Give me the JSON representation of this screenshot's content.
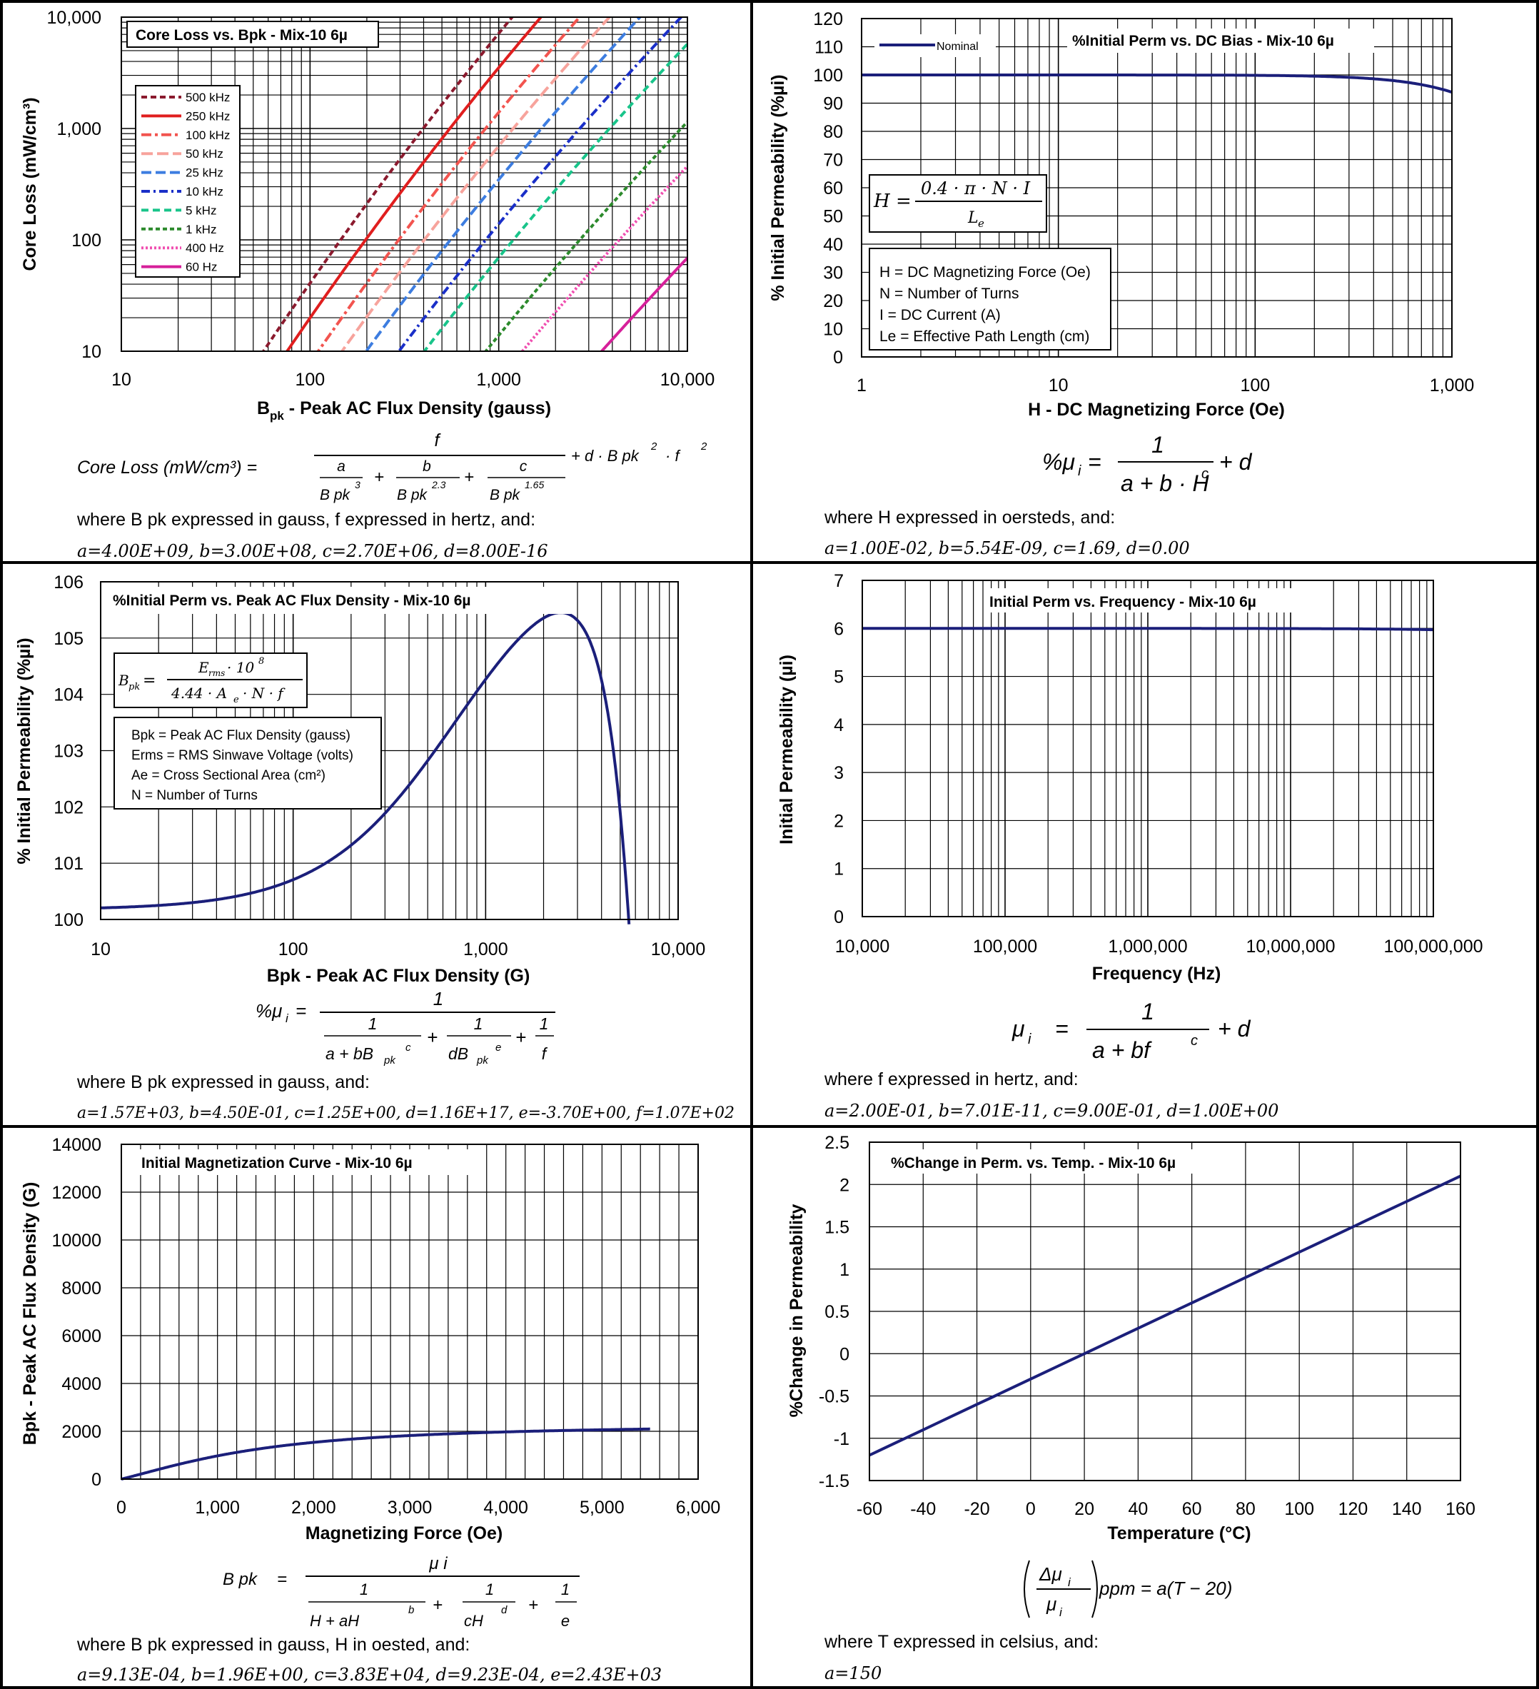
{
  "chart_data": [
    {
      "id": "core_loss",
      "type": "line",
      "title": "Core Loss vs. Bpk - Mix-10  6µ",
      "xlabel_main": "B",
      "xlabel_sub": "pk",
      "xlabel_rest": " - Peak AC Flux Density (gauss)",
      "ylabel": "Core Loss (mW/cm³)",
      "x_scale": "log",
      "y_scale": "log",
      "xlim": [
        10,
        10000
      ],
      "ylim": [
        10,
        10000
      ],
      "x_ticks": [
        "10",
        "100",
        "1,000",
        "10,000"
      ],
      "y_ticks": [
        "10",
        "100",
        "1,000",
        "10,000"
      ],
      "grid": true,
      "legend": "top-left",
      "series": [
        {
          "name": "500 kHz",
          "f": 500000,
          "color": "#8b1a2e",
          "dash": "8,5"
        },
        {
          "name": "250 kHz",
          "f": 250000,
          "color": "#e01e1e",
          "dash": ""
        },
        {
          "name": "100 kHz",
          "f": 100000,
          "color": "#f2544f",
          "dash": "14,5,4,5"
        },
        {
          "name": "50 kHz",
          "f": 50000,
          "color": "#f7a39c",
          "dash": "16,6"
        },
        {
          "name": "25 kHz",
          "f": 25000,
          "color": "#3d7de0",
          "dash": "14,6"
        },
        {
          "name": "10 kHz",
          "f": 10000,
          "color": "#1a2fc8",
          "dash": "12,5,3,5"
        },
        {
          "name": "5 kHz",
          "f": 5000,
          "color": "#19c48a",
          "dash": "10,6"
        },
        {
          "name": "1 kHz",
          "f": 1000,
          "color": "#2c8a2c",
          "dash": "6,4"
        },
        {
          "name": "400 Hz",
          "f": 400,
          "color": "#f04fb0",
          "dash": "3,3"
        },
        {
          "name": "60 Hz",
          "f": 60,
          "color": "#d6209a",
          "dash": ""
        }
      ],
      "coefficients": {
        "a": 4000000000.0,
        "b": 300000000.0,
        "c": 2700000.0,
        "d": 8e-16
      },
      "equation_lhs": "Core Loss (mW/cm³)  =",
      "where_text": "where B pk expressed in gauss, f expressed in hertz, and:",
      "coef_text": "a=4.00E+09,   b=3.00E+08,   c=2.70E+06,   d=8.00E-16"
    },
    {
      "id": "perm_dc_bias",
      "type": "line",
      "title": "%Initial Perm vs. DC Bias - Mix-10  6µ",
      "xlabel": "H - DC Magnetizing Force (Oe)",
      "ylabel": "% Initial Permeability (%µi)",
      "x_scale": "log",
      "xlim": [
        1,
        1000
      ],
      "ylim": [
        0,
        120
      ],
      "x_ticks": [
        "1",
        "10",
        "100",
        "1,000"
      ],
      "y_ticks": [
        "0",
        "10",
        "20",
        "30",
        "40",
        "50",
        "60",
        "70",
        "80",
        "90",
        "100",
        "110",
        "120"
      ],
      "grid": true,
      "legend": "top-left",
      "series": [
        {
          "name": "Nominal",
          "color": "#1b1f7a"
        }
      ],
      "coefficients": {
        "a": 0.01,
        "b": 5.54e-09,
        "c": 1.69,
        "d": 0.0
      },
      "formula_box": "H = 0.4·π·N·I / Le",
      "definitions": [
        "H = DC Magnetizing Force (Oe)",
        "N = Number of Turns",
        "I = DC Current (A)",
        "Le = Effective Path Length (cm)"
      ],
      "where_text": "where H expressed in oersteds, and:",
      "coef_text": "a=1.00E-02,  b=5.54E-09,  c=1.69,  d=0.00"
    },
    {
      "id": "perm_ac_flux",
      "type": "line",
      "title": "%Initial Perm vs. Peak AC Flux Density - Mix-10  6µ",
      "xlabel": "Bpk - Peak AC Flux Density (G)",
      "ylabel": "% Initial Permeability (%µi)",
      "x_scale": "log",
      "xlim": [
        10,
        10000
      ],
      "ylim": [
        100,
        106
      ],
      "x_ticks": [
        "10",
        "100",
        "1,000",
        "10,000"
      ],
      "y_ticks": [
        "100",
        "101",
        "102",
        "103",
        "104",
        "105",
        "106"
      ],
      "grid": true,
      "series": [
        {
          "name": "",
          "color": "#1b1f7a"
        }
      ],
      "coefficients": {
        "a": 1570.0,
        "b": 0.45,
        "c": 1.25,
        "d": 1.16e+17,
        "e": -3.7,
        "f": 107.0
      },
      "formula_box": "Bpk = Erms·10^8 / (4.44·Ae·N·f)",
      "definitions": [
        "Bpk = Peak AC Flux Density (gauss)",
        "Erms = RMS Sinwave Voltage (volts)",
        "Ae = Cross Sectional Area (cm²)",
        "N = Number of Turns"
      ],
      "where_text": "where B pk expressed in gauss, and:",
      "coef_text": "a=1.57E+03, b=4.50E-01, c=1.25E+00, d=1.16E+17, e=-3.70E+00, f=1.07E+02"
    },
    {
      "id": "perm_frequency",
      "type": "line",
      "title": "Initial Perm vs. Frequency - Mix-10  6µ",
      "xlabel": "Frequency (Hz)",
      "ylabel": "Initial Permeability (µi)",
      "x_scale": "log",
      "xlim": [
        10000,
        100000000
      ],
      "ylim": [
        0,
        7
      ],
      "x_ticks": [
        "10,000",
        "100,000",
        "1,000,000",
        "10,000,000",
        "100,000,000"
      ],
      "y_ticks": [
        "0",
        "1",
        "2",
        "3",
        "4",
        "5",
        "6",
        "7"
      ],
      "grid": true,
      "series": [
        {
          "name": "",
          "color": "#1b1f7a"
        }
      ],
      "coefficients": {
        "a": 0.2,
        "b": 7.01e-11,
        "c": 0.9,
        "d": 1.0
      },
      "where_text": "where f expressed in hertz, and:",
      "coef_text": "a=2.00E-01,   b=7.01E-11,   c=9.00E-01,   d=1.00E+00"
    },
    {
      "id": "magnetization",
      "type": "line",
      "title": "Initial Magnetization Curve - Mix-10  6µ",
      "xlabel": "Magnetizing Force (Oe)",
      "ylabel": "Bpk - Peak AC Flux Density (G)",
      "xlim": [
        0,
        6000
      ],
      "ylim": [
        0,
        14000
      ],
      "x_ticks": [
        "0",
        "1,000",
        "2,000",
        "3,000",
        "4,000",
        "5,000",
        "6,000"
      ],
      "y_ticks": [
        "0",
        "2000",
        "4000",
        "6000",
        "8000",
        "10000",
        "12000",
        "14000"
      ],
      "grid": true,
      "series": [
        {
          "name": "",
          "color": "#1b1f7a"
        }
      ],
      "coefficients": {
        "a": 0.000913,
        "b": 1.96,
        "c": 38300.0,
        "d": 0.000923,
        "e": 2430.0
      },
      "where_text": "where B pk expressed in gauss, H in oested, and:",
      "coef_text": "a=9.13E-04,  b=1.96E+00,  c=3.83E+04,  d=9.23E-04,  e=2.43E+03"
    },
    {
      "id": "perm_temperature",
      "type": "line",
      "title": "%Change in Perm. vs. Temp. - Mix-10  6µ",
      "xlabel": "Temperature (°C)",
      "ylabel": "%Change in Permeability",
      "xlim": [
        -60,
        160
      ],
      "ylim": [
        -1.5,
        2.5
      ],
      "x_ticks": [
        "-60",
        "-40",
        "-20",
        "0",
        "20",
        "40",
        "60",
        "80",
        "100",
        "120",
        "140",
        "160"
      ],
      "y_ticks": [
        "-1.5",
        "-1",
        "-0.5",
        "0",
        "0.5",
        "1",
        "1.5",
        "2",
        "2.5"
      ],
      "grid": true,
      "series": [
        {
          "name": "",
          "color": "#1b1f7a"
        }
      ],
      "coefficients": {
        "a": 150
      },
      "where_text": "where T expressed in celsius, and:",
      "coef_text": "a=150"
    }
  ]
}
